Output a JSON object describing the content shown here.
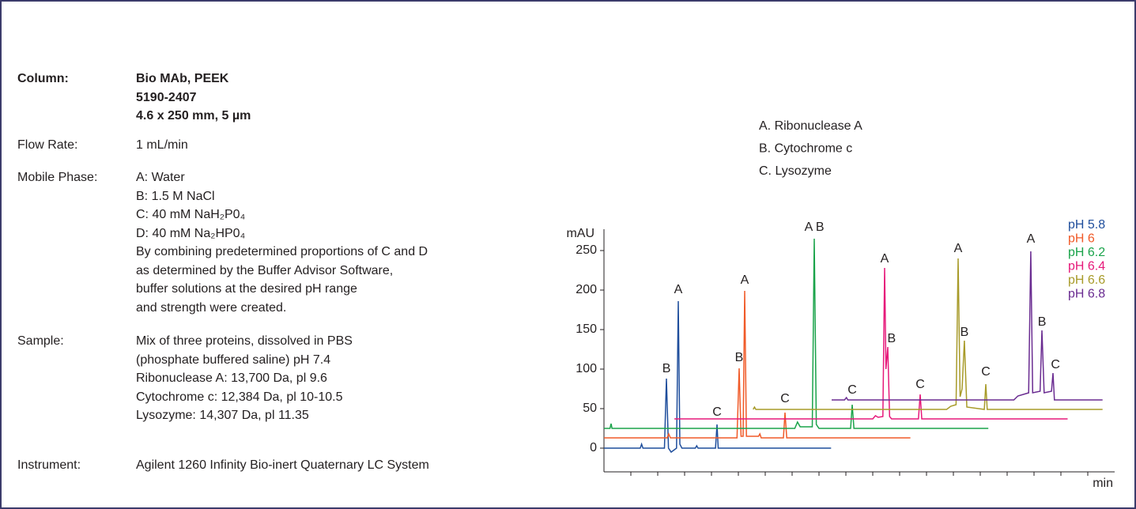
{
  "conditions": [
    {
      "label": "Column:",
      "bold": true,
      "lines": [
        "Bio MAb, PEEK",
        "5190-2407",
        "4.6 x 250 mm, 5 µm"
      ]
    },
    {
      "label": "Flow Rate:",
      "bold": false,
      "lines": [
        "1 mL/min"
      ]
    },
    {
      "label": "Mobile Phase:",
      "bold": false,
      "lines": [
        "A: Water",
        "B: 1.5 M NaCl",
        "C: 40 mM NaH₂P0₄",
        "D: 40 mM Na₂HP0₄",
        "By combining predetermined proportions of C and D",
        "as determined by the Buffer Advisor Software,",
        "buffer solutions at the desired pH range",
        "and strength were created."
      ]
    },
    {
      "label": "Sample:",
      "bold": false,
      "lines": [
        "Mix of three proteins, dissolved in PBS",
        "(phosphate buffered saline) pH 7.4",
        "Ribonuclease A: 13,700 Da, pl 9.6",
        "Cytochrome c: 12,384 Da, pl 10-10.5",
        "Lysozyme: 14,307 Da, pl 11.35"
      ]
    },
    {
      "label": "Instrument:",
      "bold": false,
      "lines": [
        "Agilent 1260 Infinity Bio-inert Quaternary LC System"
      ]
    }
  ],
  "chart_data": {
    "type": "line",
    "y_label": "mAU",
    "x_label": "min",
    "peak_key": [
      "A. Ribonuclease A",
      "B. Cytochrome c",
      "C. Lysozyme"
    ],
    "xlim": [
      0,
      38
    ],
    "ylim": [
      -30,
      277
    ],
    "yticks": [
      0,
      50,
      100,
      150,
      200,
      250
    ],
    "xticks": [
      2,
      4,
      6,
      8,
      10,
      12,
      14,
      16,
      18,
      20,
      22,
      24,
      26,
      28,
      30,
      32,
      34,
      36
    ],
    "series": [
      {
        "name": "pH 5.8",
        "color": "#1f4e9c",
        "x": [
          0,
          2.7,
          2.8,
          2.9,
          4.5,
          4.65,
          4.8,
          5.0,
          5.4,
          5.53,
          5.65,
          5.8,
          6.8,
          6.9,
          7.0,
          8.3,
          8.41,
          8.5,
          16.9
        ],
        "values": [
          0,
          0,
          5,
          0,
          0,
          88,
          0,
          -5,
          0,
          186,
          5,
          0,
          0,
          3,
          0,
          0,
          30,
          0,
          0
        ]
      },
      {
        "name": "pH 6",
        "color": "#f05a28",
        "x": [
          0,
          4.7,
          4.82,
          4.95,
          9.9,
          10.06,
          10.2,
          10.35,
          10.47,
          10.6,
          11.5,
          11.6,
          11.7,
          13.35,
          13.47,
          13.6,
          22.8
        ],
        "values": [
          13,
          13,
          18,
          13,
          13,
          101,
          15,
          15,
          199,
          15,
          15,
          18,
          13,
          13,
          45,
          13,
          13
        ]
      },
      {
        "name": "pH 6.2",
        "color": "#1aa34a",
        "x": [
          0,
          0.45,
          0.53,
          0.6,
          14.2,
          14.4,
          14.6,
          15.5,
          15.65,
          15.8,
          16.0,
          18.35,
          18.47,
          18.6,
          28.6
        ],
        "values": [
          25,
          25,
          31,
          25,
          25,
          33,
          27,
          27,
          265,
          30,
          25,
          25,
          55,
          25,
          25
        ]
      },
      {
        "name": "pH 6.4",
        "color": "#e6197a",
        "x": [
          5.24,
          20.0,
          20.2,
          20.4,
          20.75,
          20.88,
          20.98,
          21.12,
          21.25,
          21.4,
          23.4,
          23.53,
          23.65,
          34.5
        ],
        "values": [
          37,
          37,
          41,
          39,
          40,
          228,
          100,
          128,
          40,
          37,
          37,
          68,
          37,
          37
        ]
      },
      {
        "name": "pH 6.6",
        "color": "#a89b2a",
        "x": [
          11.1,
          11.2,
          11.3,
          11.4,
          25.5,
          25.8,
          26.2,
          26.35,
          26.5,
          26.65,
          26.82,
          27.0,
          28.3,
          28.41,
          28.52,
          37.1
        ],
        "values": [
          49,
          52,
          49,
          49,
          49,
          53,
          55,
          240,
          65,
          75,
          136,
          52,
          49,
          81,
          49,
          49
        ]
      },
      {
        "name": "pH 6.8",
        "color": "#6a2c91",
        "x": [
          16.94,
          17.9,
          18.04,
          18.15,
          30.5,
          30.8,
          31.6,
          31.76,
          31.9,
          32.45,
          32.59,
          32.75,
          33.3,
          33.41,
          33.52,
          37.1
        ],
        "values": [
          61,
          61,
          64,
          61,
          61,
          66,
          70,
          249,
          70,
          72,
          149,
          70,
          72,
          95,
          61,
          61
        ]
      }
    ],
    "annotations": [
      {
        "text": "B",
        "x": 4.65,
        "y": 100
      },
      {
        "text": "A",
        "x": 5.53,
        "y": 200
      },
      {
        "text": "C",
        "x": 8.41,
        "y": 45
      },
      {
        "text": "B",
        "x": 10.06,
        "y": 114
      },
      {
        "text": "A",
        "x": 10.47,
        "y": 212
      },
      {
        "text": "C",
        "x": 13.47,
        "y": 62
      },
      {
        "text": "A B",
        "x": 15.65,
        "y": 279
      },
      {
        "text": "C",
        "x": 18.47,
        "y": 73
      },
      {
        "text": "A",
        "x": 20.88,
        "y": 239
      },
      {
        "text": "B",
        "x": 21.4,
        "y": 138
      },
      {
        "text": "C",
        "x": 23.53,
        "y": 80
      },
      {
        "text": "A",
        "x": 26.35,
        "y": 252
      },
      {
        "text": "B",
        "x": 26.82,
        "y": 146
      },
      {
        "text": "C",
        "x": 28.41,
        "y": 96
      },
      {
        "text": "A",
        "x": 31.76,
        "y": 264
      },
      {
        "text": "B",
        "x": 32.59,
        "y": 159
      },
      {
        "text": "C",
        "x": 33.6,
        "y": 105
      }
    ]
  }
}
